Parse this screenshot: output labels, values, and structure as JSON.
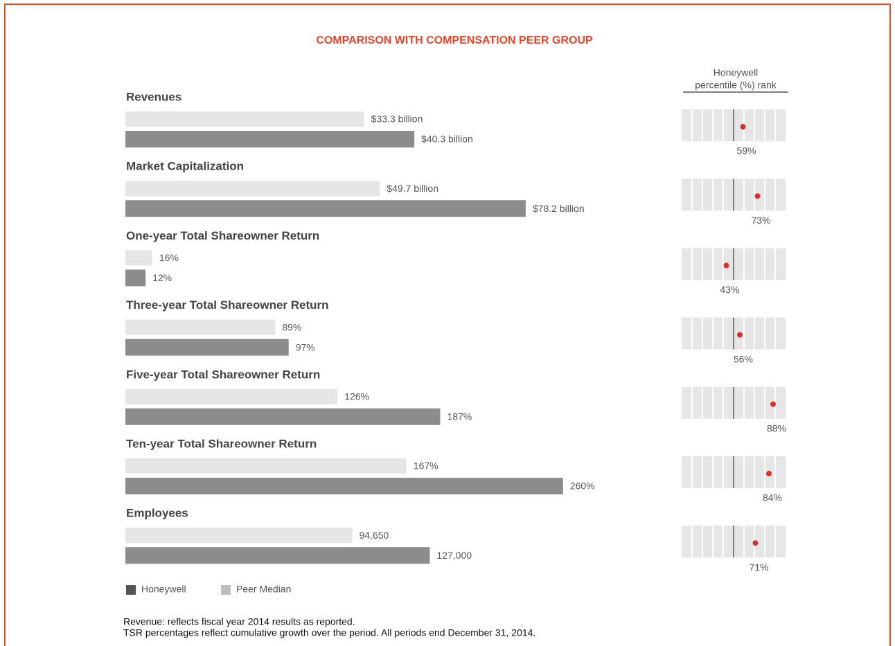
{
  "title": "COMPARISON WITH COMPENSATION PEER GROUP",
  "rank_header": [
    "Honeywell",
    "percentile (%) rank"
  ],
  "groups": [
    {
      "name": "Revenues",
      "peer": {
        "value": 33.3,
        "label": "$33.3 billion"
      },
      "honeywell": {
        "value": 40.3,
        "label": "$40.3 billion"
      },
      "percentile": {
        "value": 59,
        "label": "59%"
      }
    },
    {
      "name": "Market Capitalization",
      "peer": {
        "value": 49.7,
        "label": "$49.7 billion"
      },
      "honeywell": {
        "value": 78.2,
        "label": "$78.2 billion"
      },
      "percentile": {
        "value": 73,
        "label": "73%"
      }
    },
    {
      "name": "One-year Total Shareowner Return",
      "peer": {
        "value": 16,
        "label": "16%"
      },
      "honeywell": {
        "value": 12,
        "label": "12%"
      },
      "percentile": {
        "value": 43,
        "label": "43%"
      }
    },
    {
      "name": "Three-year Total Shareowner Return",
      "peer": {
        "value": 89,
        "label": "89%"
      },
      "honeywell": {
        "value": 97,
        "label": "97%"
      },
      "percentile": {
        "value": 56,
        "label": "56%"
      }
    },
    {
      "name": "Five-year Total Shareowner Return",
      "peer": {
        "value": 126,
        "label": "126%"
      },
      "honeywell": {
        "value": 187,
        "label": "187%"
      },
      "percentile": {
        "value": 88,
        "label": "88%"
      }
    },
    {
      "name": "Ten-year Total Shareowner Return",
      "peer": {
        "value": 167,
        "label": "167%"
      },
      "honeywell": {
        "value": 260,
        "label": "260%"
      },
      "percentile": {
        "value": 84,
        "label": "84%"
      }
    },
    {
      "name": "Employees",
      "peer": {
        "value": 94650,
        "label": "94,650"
      },
      "honeywell": {
        "value": 127000,
        "label": "127,000"
      },
      "percentile": {
        "value": 71,
        "label": "71%"
      }
    }
  ],
  "legend": [
    {
      "name": "Honeywell",
      "color": "#555555"
    },
    {
      "name": "Peer Median",
      "color": "#bdbdbd"
    }
  ],
  "colors": {
    "peer": "#e6e6e6",
    "honeywell": "#8c8c8d",
    "dot": "#d9302c"
  },
  "notes": [
    "Revenue: reflects fiscal year 2014 results as reported.",
    "TSR percentages reflect cumulative growth over the period. All periods end December 31, 2014."
  ]
}
